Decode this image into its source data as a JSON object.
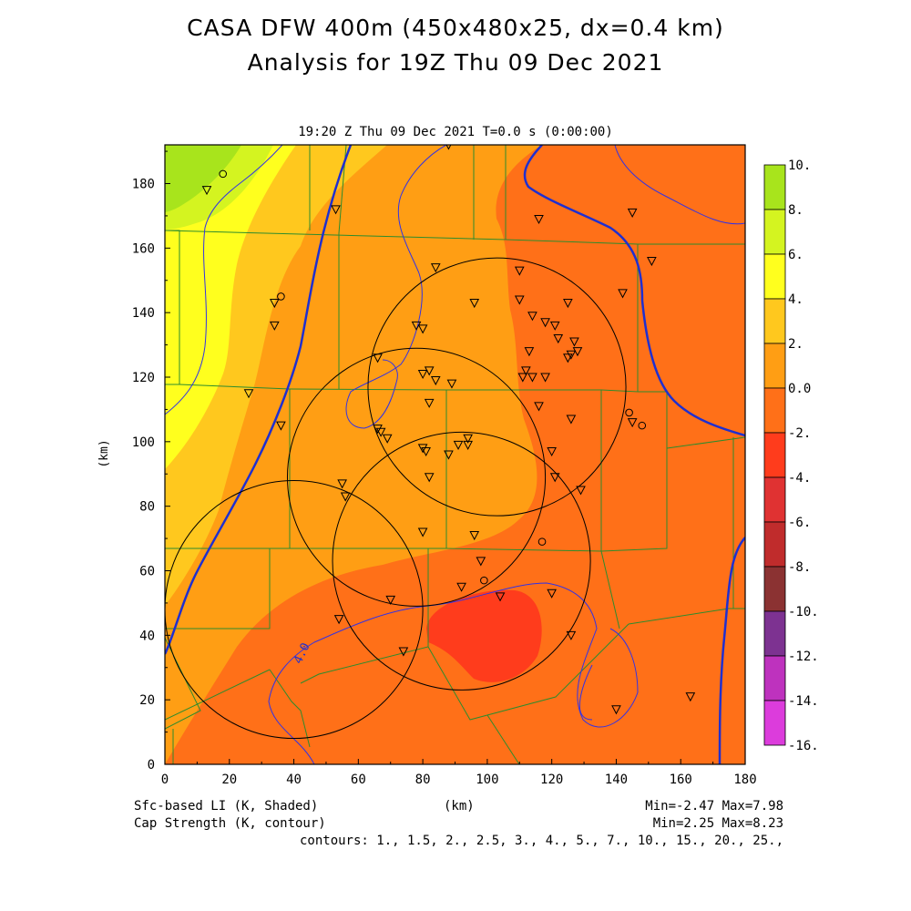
{
  "title_line1": "CASA DFW 400m (450x480x25, dx=0.4 km)",
  "title_line2": "Analysis for 19Z Thu 09 Dec 2021",
  "subtitle": "19:20 Z Thu 09 Dec 2021   T=0.0 s (0:00:00)",
  "footer": {
    "shaded_label": "Sfc-based LI (K, Shaded)",
    "contour_label": "Cap Strength (K, contour)",
    "x_unit": "(km)",
    "shaded_stats": "Min=-2.47 Max=7.98",
    "contour_stats": "Min=2.25 Max=8.23",
    "contours": "contours: 1., 1.5, 2., 2.5, 3., 4., 5., 7., 10., 15., 20., 25.,"
  },
  "chart_data": {
    "type": "heatmap",
    "xlabel": "(km)",
    "ylabel": "(km)",
    "xlim": [
      0,
      180
    ],
    "ylim": [
      0,
      192
    ],
    "x_ticks": [
      0,
      20,
      40,
      60,
      80,
      100,
      120,
      140,
      160,
      180
    ],
    "y_ticks": [
      0,
      20,
      40,
      60,
      80,
      100,
      120,
      140,
      160,
      180
    ],
    "colorbar": {
      "labels": [
        "10.",
        "8.",
        "6.",
        "4.",
        "2.",
        "0.0",
        "-2.",
        "-4.",
        "-6.",
        "-8.",
        "-10.",
        "-12.",
        "-14.",
        "-16."
      ],
      "colors": [
        "#a8e41c",
        "#d4f420",
        "#ffff1e",
        "#ffc81e",
        "#ff9e14",
        "#ff7018",
        "#ff3c1c",
        "#e03232",
        "#c02c2c",
        "#8b3232",
        "#7d3291",
        "#be32be",
        "#dc3cdc"
      ]
    },
    "contour_label": "4.0",
    "radar_circles": [
      {
        "center": [
          103,
          117
        ],
        "radius_km": 40
      },
      {
        "center": [
          78,
          89
        ],
        "radius_km": 40
      },
      {
        "center": [
          92,
          63
        ],
        "radius_km": 40
      },
      {
        "center": [
          40,
          48
        ],
        "radius_km": 40
      }
    ],
    "stations": [
      [
        13,
        178
      ],
      [
        34,
        143
      ],
      [
        34,
        136
      ],
      [
        26,
        115
      ],
      [
        36,
        105
      ],
      [
        53,
        172
      ],
      [
        66,
        126
      ],
      [
        66,
        104
      ],
      [
        67,
        103
      ],
      [
        69,
        101
      ],
      [
        78,
        136
      ],
      [
        80,
        135
      ],
      [
        80,
        121
      ],
      [
        82,
        122
      ],
      [
        84,
        119
      ],
      [
        82,
        112
      ],
      [
        89,
        118
      ],
      [
        88,
        96
      ],
      [
        91,
        99
      ],
      [
        94,
        101
      ],
      [
        94,
        99
      ],
      [
        80,
        98
      ],
      [
        81,
        97
      ],
      [
        82,
        89
      ],
      [
        80,
        72
      ],
      [
        96,
        71
      ],
      [
        98,
        63
      ],
      [
        92,
        55
      ],
      [
        88,
        192
      ],
      [
        84,
        154
      ],
      [
        96,
        143
      ],
      [
        110,
        144
      ],
      [
        110,
        153
      ],
      [
        116,
        169
      ],
      [
        114,
        139
      ],
      [
        118,
        137
      ],
      [
        121,
        136
      ],
      [
        122,
        132
      ],
      [
        125,
        143
      ],
      [
        127,
        131
      ],
      [
        128,
        128
      ],
      [
        126,
        127
      ],
      [
        125,
        126
      ],
      [
        113,
        128
      ],
      [
        112,
        122
      ],
      [
        111,
        120
      ],
      [
        114,
        120
      ],
      [
        118,
        120
      ],
      [
        116,
        111
      ],
      [
        126,
        107
      ],
      [
        120,
        97
      ],
      [
        121,
        89
      ],
      [
        129,
        85
      ],
      [
        142,
        146
      ],
      [
        145,
        171
      ],
      [
        151,
        156
      ],
      [
        145,
        106
      ],
      [
        70,
        51
      ],
      [
        74,
        35
      ],
      [
        54,
        45
      ],
      [
        55,
        87
      ],
      [
        56,
        83
      ],
      [
        104,
        52
      ],
      [
        120,
        53
      ],
      [
        126,
        40
      ],
      [
        140,
        17
      ],
      [
        163,
        21
      ]
    ],
    "circle_markers": [
      [
        18,
        183
      ],
      [
        36,
        145
      ],
      [
        99,
        57
      ],
      [
        117,
        69
      ],
      [
        144,
        109
      ],
      [
        148,
        105
      ]
    ]
  }
}
